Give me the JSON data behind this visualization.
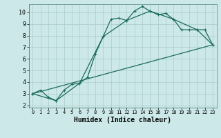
{
  "xlabel": "Humidex (Indice chaleur)",
  "bg_color": "#cce8e8",
  "grid_color": "#aacccc",
  "line_color": "#1a6b5a",
  "xlim": [
    -0.5,
    23.5
  ],
  "ylim": [
    1.8,
    10.7
  ],
  "xticks": [
    0,
    1,
    2,
    3,
    4,
    5,
    6,
    7,
    8,
    9,
    10,
    11,
    12,
    13,
    14,
    15,
    16,
    17,
    18,
    19,
    20,
    21,
    22,
    23
  ],
  "yticks": [
    2,
    3,
    4,
    5,
    6,
    7,
    8,
    9,
    10
  ],
  "series1_x": [
    0,
    1,
    2,
    3,
    4,
    5,
    6,
    7,
    8,
    9,
    10,
    11,
    12,
    13,
    14,
    15,
    16,
    17,
    18,
    19,
    20,
    21,
    22,
    23
  ],
  "series1_y": [
    3.0,
    3.3,
    2.7,
    2.4,
    3.3,
    3.8,
    3.9,
    4.4,
    6.4,
    7.9,
    9.4,
    9.5,
    9.3,
    10.1,
    10.5,
    10.1,
    9.8,
    9.9,
    9.4,
    8.5,
    8.5,
    8.5,
    8.5,
    7.2
  ],
  "series2_x": [
    0,
    3,
    6,
    9,
    12,
    15,
    18,
    21,
    23
  ],
  "series2_y": [
    3.0,
    2.4,
    3.9,
    7.9,
    9.3,
    10.1,
    9.4,
    8.5,
    7.2
  ],
  "series3_x": [
    0,
    23
  ],
  "series3_y": [
    3.0,
    7.2
  ],
  "markersize": 3,
  "linewidth": 0.9
}
